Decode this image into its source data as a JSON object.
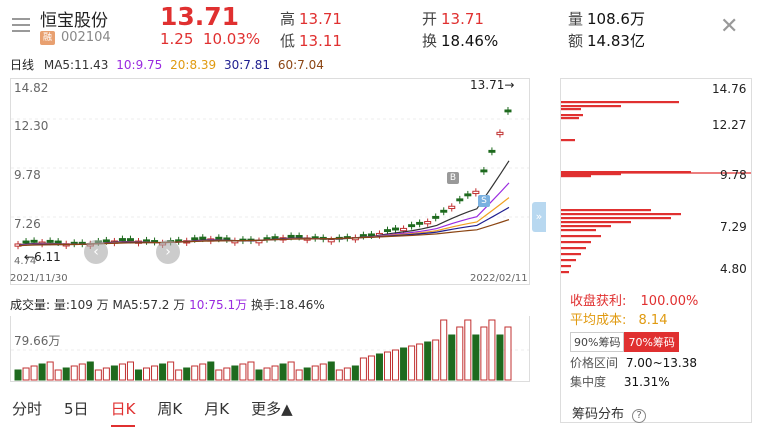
{
  "header": {
    "name": "恒宝股份",
    "badge": "融",
    "code": "002104",
    "price": "13.71",
    "change": "1.25",
    "change_pct": "10.03%",
    "high_label": "高",
    "high": "13.71",
    "low_label": "低",
    "low": "13.11",
    "open_label": "开",
    "open": "13.71",
    "turnover_label": "换",
    "turnover": "18.46%",
    "volume_label": "量",
    "volume": "108.6万",
    "amount_label": "额",
    "amount": "14.83亿"
  },
  "ma": {
    "period": "日线",
    "ma5": "MA5:11.43",
    "ma10": "10:9.75",
    "ma20": "20:8.39",
    "ma30": "30:7.81",
    "ma60": "60:7.04"
  },
  "kchart": {
    "y_labels": [
      "14.82",
      "12.30",
      "9.78",
      "7.26",
      "4.74"
    ],
    "low_marker": "6.11",
    "high_marker": "13.71→",
    "start_date": "2021/11/30",
    "end_date": "2022/02/11",
    "badge_b": "B",
    "badge_s": "S"
  },
  "volume": {
    "title": "成交量",
    "summary": "量:109 万  MA5:57.2 万",
    "ma10": "10:75.1万",
    "turnover": "换手:18.46%",
    "y_label": "79.66万"
  },
  "chip": {
    "y_labels": [
      "14.76",
      "12.27",
      "9.78",
      "7.29",
      "4.80"
    ],
    "profit_label": "收盘获利:",
    "profit_value": "100.00%",
    "avg_label": "平均成本:",
    "avg_value": "8.14",
    "btn90": "90%筹码",
    "btn70": "70%筹码",
    "range_label": "价格区间",
    "range_value": "7.00~13.38",
    "conc_label": "集中度",
    "conc_value": "31.31%",
    "footer": "筹码分布",
    "help": "?"
  },
  "tabs": [
    "分时",
    "5日",
    "日K",
    "周K",
    "月K",
    "更多▲"
  ],
  "side_btn": "»",
  "nav_prev": "‹",
  "nav_next": "›",
  "colors": {
    "up": "#e03030",
    "down": "#1e6a1e",
    "ma5": "#333333",
    "ma10": "#9a2be0",
    "ma20": "#f0a020",
    "ma30": "#202090",
    "ma60": "#8b4513"
  }
}
